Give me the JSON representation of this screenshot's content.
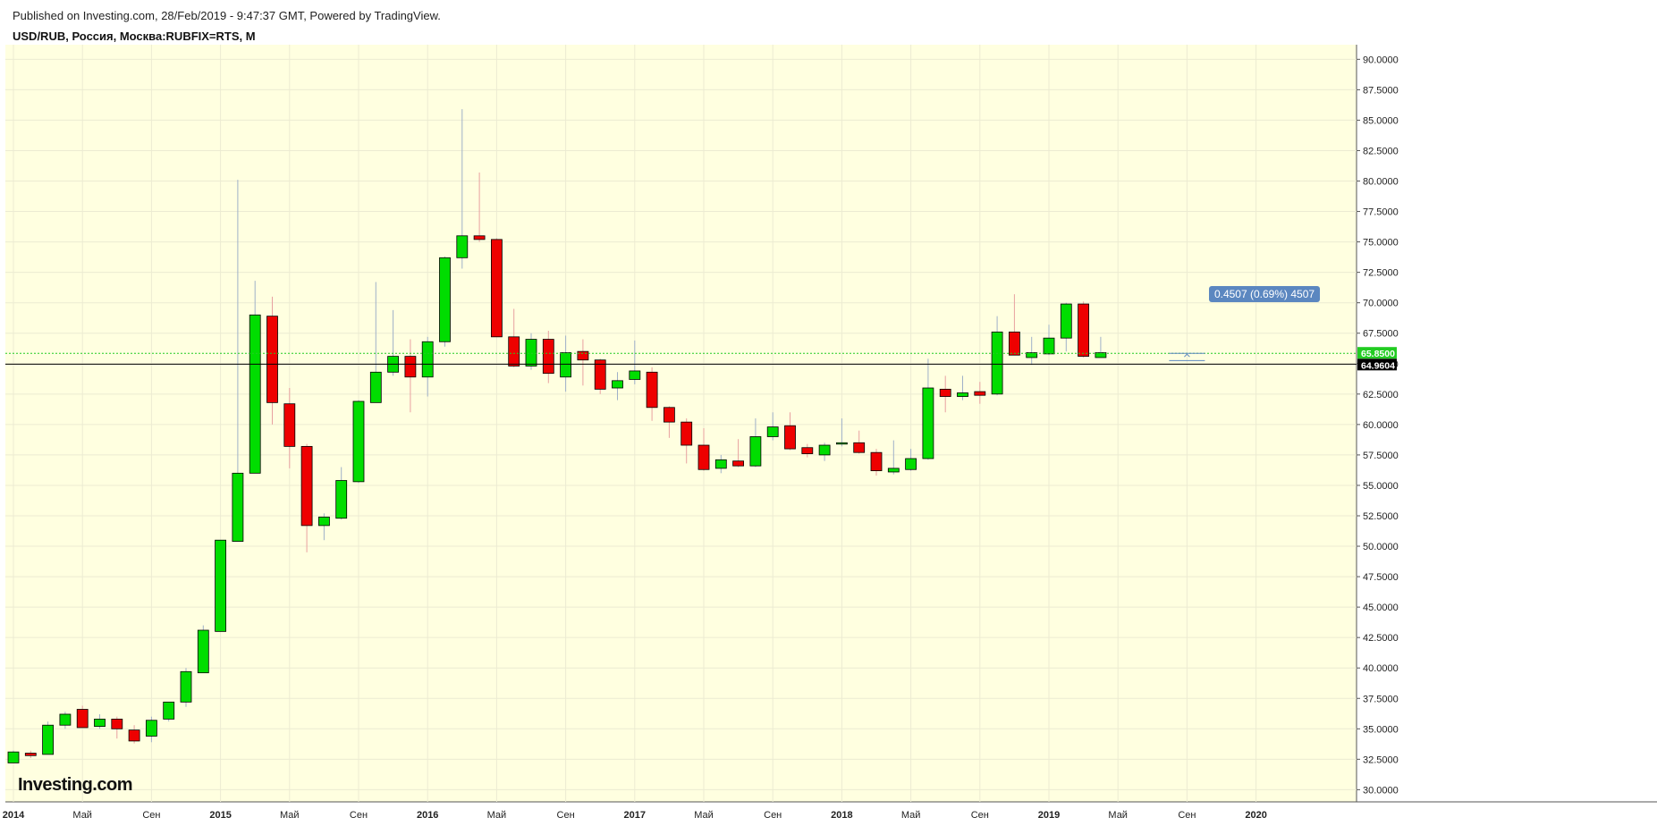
{
  "header": {
    "published": "Published on Investing.com, 28/Feb/2019 - 9:47:37 GMT, Powered by TradingView.",
    "symbol": "USD/RUB, Россия, Москва:RUBFIX=RTS, M"
  },
  "watermark": "Investing.com",
  "chart_data": {
    "type": "candlestick",
    "title": "USD/RUB, Россия, Москва:RUBFIX=RTS, M",
    "ylim": [
      29.0,
      91.2
    ],
    "y_ticks": [
      30,
      32.5,
      35,
      37.5,
      40,
      42.5,
      45,
      47.5,
      50,
      52.5,
      55,
      57.5,
      60,
      62.5,
      65,
      67.5,
      70,
      72.5,
      75,
      77.5,
      80,
      82.5,
      85,
      87.5,
      90
    ],
    "y_tick_labels": [
      "30.0000",
      "32.5000",
      "35.0000",
      "37.5000",
      "40.0000",
      "42.5000",
      "45.0000",
      "47.5000",
      "50.0000",
      "52.5000",
      "55.0000",
      "57.5000",
      "60.0000",
      "62.5000",
      "65.0000",
      "67.5000",
      "70.0000",
      "72.5000",
      "75.0000",
      "77.5000",
      "80.0000",
      "82.5000",
      "85.0000",
      "87.5000",
      "90.0000"
    ],
    "x_labels": [
      {
        "label": "2014",
        "month": 0
      },
      {
        "label": "Май",
        "month": 4
      },
      {
        "label": "Сен",
        "month": 8
      },
      {
        "label": "2015",
        "month": 12
      },
      {
        "label": "Май",
        "month": 16
      },
      {
        "label": "Сен",
        "month": 20
      },
      {
        "label": "2016",
        "month": 24
      },
      {
        "label": "Май",
        "month": 28
      },
      {
        "label": "Сен",
        "month": 32
      },
      {
        "label": "2017",
        "month": 36
      },
      {
        "label": "Май",
        "month": 40
      },
      {
        "label": "Сен",
        "month": 44
      },
      {
        "label": "2018",
        "month": 48
      },
      {
        "label": "Май",
        "month": 52
      },
      {
        "label": "Сен",
        "month": 56
      },
      {
        "label": "2019",
        "month": 60
      },
      {
        "label": "Май",
        "month": 64
      },
      {
        "label": "Сен",
        "month": 68
      },
      {
        "label": "2020",
        "month": 72
      }
    ],
    "candles": [
      [
        32.2,
        33.2,
        32.2,
        33.1
      ],
      [
        33.0,
        33.2,
        32.6,
        32.8
      ],
      [
        32.9,
        35.6,
        32.9,
        35.3
      ],
      [
        35.3,
        36.4,
        35.0,
        36.2
      ],
      [
        36.6,
        36.9,
        35.1,
        35.1
      ],
      [
        35.2,
        36.2,
        35.0,
        35.8
      ],
      [
        35.8,
        36.0,
        34.2,
        35.0
      ],
      [
        34.9,
        35.3,
        33.8,
        34.0
      ],
      [
        34.4,
        36.0,
        33.9,
        35.7
      ],
      [
        35.8,
        37.2,
        35.6,
        37.2
      ],
      [
        37.2,
        40.0,
        36.8,
        39.7
      ],
      [
        39.6,
        43.5,
        39.6,
        43.1
      ],
      [
        43.0,
        50.5,
        43.0,
        50.5
      ],
      [
        50.4,
        80.1,
        50.4,
        56.0
      ],
      [
        56.0,
        71.8,
        56.0,
        69.0
      ],
      [
        68.9,
        70.5,
        60.0,
        61.8
      ],
      [
        61.7,
        63.0,
        56.4,
        58.2
      ],
      [
        58.2,
        58.4,
        49.5,
        51.7
      ],
      [
        51.7,
        52.7,
        50.5,
        52.4
      ],
      [
        52.3,
        56.5,
        52.2,
        55.4
      ],
      [
        55.3,
        62.0,
        55.2,
        61.9
      ],
      [
        61.8,
        71.7,
        61.8,
        64.3
      ],
      [
        64.3,
        69.4,
        64.0,
        65.6
      ],
      [
        65.6,
        67.0,
        61.0,
        63.9
      ],
      [
        63.9,
        67.2,
        62.3,
        66.8
      ],
      [
        66.8,
        73.8,
        66.4,
        73.7
      ],
      [
        73.7,
        85.9,
        72.8,
        75.5
      ],
      [
        75.5,
        80.7,
        75.0,
        75.2
      ],
      [
        75.2,
        75.3,
        67.2,
        67.2
      ],
      [
        67.2,
        69.5,
        64.7,
        64.8
      ],
      [
        64.8,
        67.5,
        64.5,
        67.0
      ],
      [
        67.0,
        67.7,
        63.4,
        64.2
      ],
      [
        63.9,
        67.3,
        62.7,
        65.9
      ],
      [
        66.0,
        67.0,
        63.2,
        65.3
      ],
      [
        65.3,
        65.4,
        62.5,
        62.9
      ],
      [
        63.0,
        64.3,
        62.0,
        63.6
      ],
      [
        63.7,
        66.9,
        63.3,
        64.4
      ],
      [
        64.3,
        64.7,
        60.3,
        61.4
      ],
      [
        61.4,
        61.5,
        58.9,
        60.2
      ],
      [
        60.2,
        60.5,
        56.8,
        58.3
      ],
      [
        58.3,
        59.7,
        56.2,
        56.3
      ],
      [
        56.4,
        57.5,
        56.0,
        57.1
      ],
      [
        57.0,
        58.8,
        56.5,
        56.6
      ],
      [
        56.6,
        60.5,
        56.5,
        59.0
      ],
      [
        59.0,
        61.0,
        58.7,
        59.8
      ],
      [
        59.9,
        61.0,
        57.9,
        58.0
      ],
      [
        58.1,
        58.4,
        57.3,
        57.6
      ],
      [
        57.5,
        58.5,
        57.0,
        58.3
      ],
      [
        58.4,
        60.5,
        58.2,
        58.5
      ],
      [
        58.5,
        59.5,
        57.6,
        57.7
      ],
      [
        57.7,
        58.0,
        55.8,
        56.2
      ],
      [
        56.1,
        58.7,
        55.9,
        56.4
      ],
      [
        56.3,
        58.0,
        56.2,
        57.2
      ],
      [
        57.2,
        65.4,
        57.1,
        63.0
      ],
      [
        62.9,
        64.0,
        61.0,
        62.3
      ],
      [
        62.3,
        64.0,
        62.0,
        62.6
      ],
      [
        62.7,
        63.5,
        61.7,
        62.4
      ],
      [
        62.5,
        68.9,
        62.4,
        67.6
      ],
      [
        67.6,
        70.7,
        65.7,
        65.7
      ],
      [
        65.5,
        67.2,
        64.9,
        65.9
      ],
      [
        65.8,
        68.2,
        65.7,
        67.1
      ],
      [
        67.1,
        70.0,
        66.0,
        69.9
      ],
      [
        69.9,
        70.1,
        65.5,
        65.6
      ],
      [
        65.5,
        67.2,
        65.5,
        65.9
      ]
    ],
    "current_price": "65.8500",
    "current_price_value": 65.85,
    "ref_price": "64.9604",
    "ref_price_value": 64.96,
    "annotation": "0.4507 (0.69%) 4507",
    "colors": {
      "up": "#00dd00",
      "down": "#ee0000",
      "background": "#ffffe0",
      "price_line": "#22cc22",
      "ref_line": "#000000",
      "annotation_bg": "#5b87c0"
    }
  }
}
